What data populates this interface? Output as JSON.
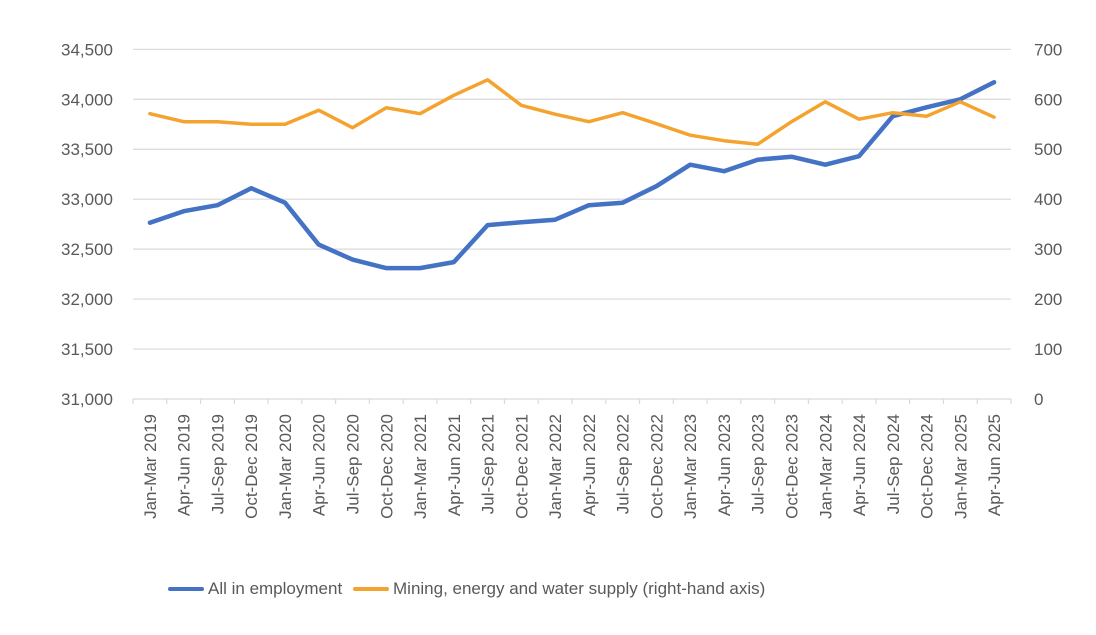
{
  "chart_data": {
    "type": "line",
    "title": "",
    "xlabel": "",
    "ylabel": "",
    "ylabel_right": "",
    "grid": true,
    "legend_position": "bottom",
    "categories": [
      "Jan-Mar 2019",
      "Apr-Jun 2019",
      "Jul-Sep 2019",
      "Oct-Dec 2019",
      "Jan-Mar 2020",
      "Apr-Jun 2020",
      "Jul-Sep 2020",
      "Oct-Dec 2020",
      "Jan-Mar 2021",
      "Apr-Jun 2021",
      "Jul-Sep 2021",
      "Oct-Dec 2021",
      "Jan-Mar 2022",
      "Apr-Jun 2022",
      "Jul-Sep 2022",
      "Oct-Dec 2022",
      "Jan-Mar 2023",
      "Apr-Jun 2023",
      "Jul-Sep 2023",
      "Oct-Dec 2023",
      "Jan-Mar 2024",
      "Apr-Jun 2024",
      "Jul-Sep 2024",
      "Oct-Dec 2024",
      "Jan-Mar 2025",
      "Apr-Jun 2025"
    ],
    "y_left": {
      "ylim": [
        31000,
        34500
      ],
      "ticks": [
        31000,
        31500,
        32000,
        32500,
        33000,
        33500,
        34000,
        34500
      ],
      "tick_labels": [
        "31,000",
        "31,500",
        "32,000",
        "32,500",
        "33,000",
        "33,500",
        "34,000",
        "34,500"
      ]
    },
    "y_right": {
      "ylim": [
        0,
        700
      ],
      "ticks": [
        0,
        100,
        200,
        300,
        400,
        500,
        600,
        700
      ],
      "tick_labels": [
        "0",
        "100",
        "200",
        "300",
        "400",
        "500",
        "600",
        "700"
      ]
    },
    "series": [
      {
        "name": "All in employment",
        "axis": "left",
        "color": "#4472C4",
        "values": [
          32765,
          32880,
          32940,
          33110,
          32965,
          32545,
          32395,
          32310,
          32310,
          32370,
          32740,
          32770,
          32795,
          32940,
          32965,
          33130,
          33345,
          33280,
          33395,
          33425,
          33345,
          33430,
          33830,
          33920,
          34000,
          34170
        ]
      },
      {
        "name": "Mining, energy and water supply (right-hand axis)",
        "axis": "right",
        "color": "#F4A32F",
        "values": [
          571,
          555,
          555,
          550,
          550,
          578,
          543,
          583,
          571,
          608,
          639,
          588,
          570,
          555,
          573,
          551,
          528,
          517,
          510,
          555,
          595,
          560,
          573,
          566,
          595,
          564
        ]
      }
    ]
  }
}
